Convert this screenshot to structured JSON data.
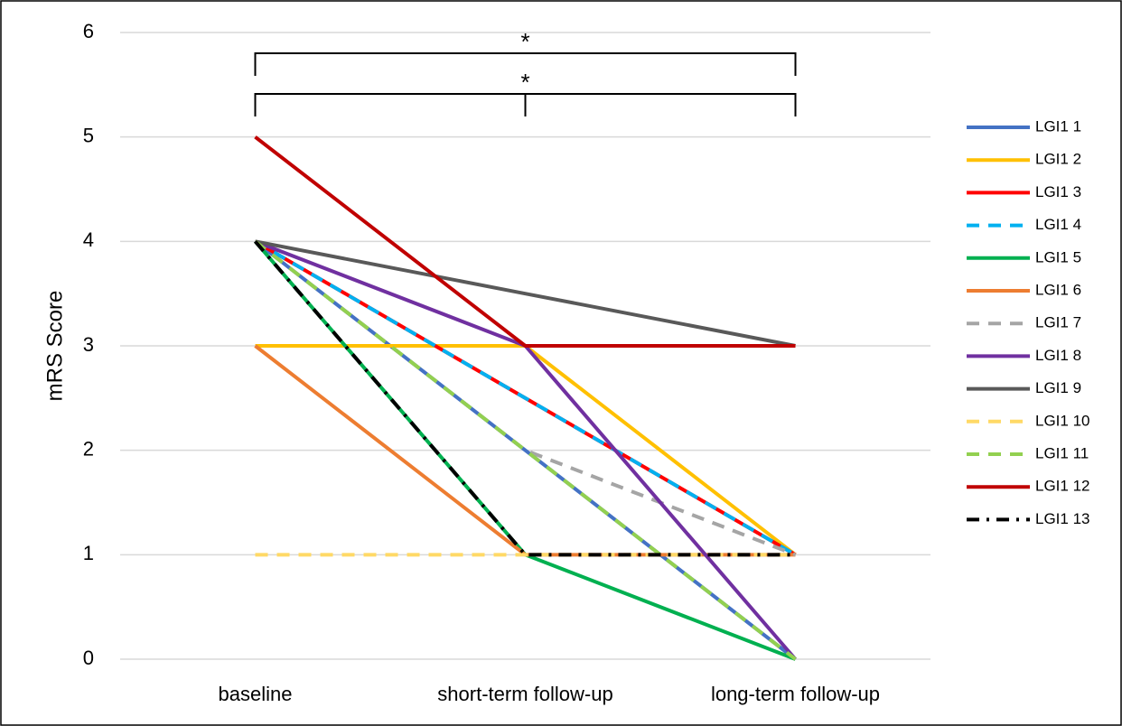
{
  "chart_data": {
    "type": "line",
    "y_label": "mRS Score",
    "categories": [
      "baseline",
      "short-term follow-up",
      "long-term follow-up"
    ],
    "ylim": [
      0,
      6
    ],
    "yticks": [
      0,
      1,
      2,
      3,
      4,
      5,
      6
    ],
    "grid": true,
    "legend": "right",
    "annotations": [
      "*",
      "*"
    ],
    "series": [
      {
        "name": "LGI1 1",
        "color": "#4472c4",
        "dash": "solid",
        "values": [
          4,
          2,
          0
        ]
      },
      {
        "name": "LGI1 2",
        "color": "#ffc000",
        "dash": "solid",
        "values": [
          3,
          3,
          1
        ]
      },
      {
        "name": "LGI1 3",
        "color": "#ff0000",
        "dash": "solid",
        "values": [
          4,
          2.5,
          1
        ]
      },
      {
        "name": "LGI1 4",
        "color": "#00b0f0",
        "dash": "dash",
        "values": [
          4,
          2.5,
          1
        ]
      },
      {
        "name": "LGI1 5",
        "color": "#00b050",
        "dash": "solid",
        "values": [
          4,
          1,
          0
        ]
      },
      {
        "name": "LGI1 6",
        "color": "#ed7d31",
        "dash": "solid",
        "values": [
          3,
          1,
          1
        ]
      },
      {
        "name": "LGI1 7",
        "color": "#a5a5a5",
        "dash": "dash",
        "values": [
          4,
          2,
          1
        ]
      },
      {
        "name": "LGI1 8",
        "color": "#7030a0",
        "dash": "solid",
        "values": [
          4,
          3,
          0
        ]
      },
      {
        "name": "LGI1 9",
        "color": "#595959",
        "dash": "solid",
        "values": [
          4,
          3.5,
          3
        ]
      },
      {
        "name": "LGI1 10",
        "color": "#ffd966",
        "dash": "dash",
        "values": [
          1,
          1,
          1
        ]
      },
      {
        "name": "LGI1 11",
        "color": "#92d050",
        "dash": "dash",
        "values": [
          4,
          2,
          0
        ]
      },
      {
        "name": "LGI1 12",
        "color": "#c00000",
        "dash": "solid",
        "values": [
          5,
          3,
          3
        ]
      },
      {
        "name": "LGI1 13",
        "color": "#000000",
        "dash": "dashdot",
        "values": [
          4,
          1,
          1
        ]
      }
    ]
  }
}
